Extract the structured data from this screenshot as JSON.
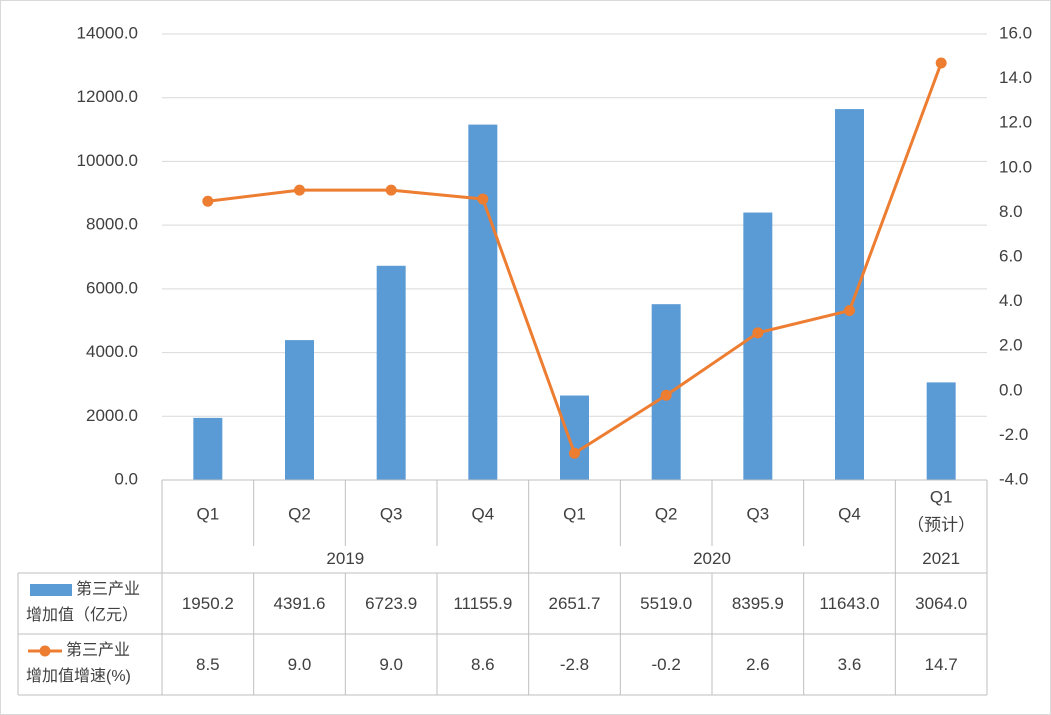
{
  "chart_data": {
    "type": "bar+line",
    "title": "",
    "groups": [
      {
        "label": "2019",
        "quarters": [
          "Q1",
          "Q2",
          "Q3",
          "Q4"
        ]
      },
      {
        "label": "2020",
        "quarters": [
          "Q1",
          "Q2",
          "Q3",
          "Q4"
        ]
      },
      {
        "label": "2021",
        "quarters": [
          "Q1\n（预计）"
        ]
      }
    ],
    "categories": [
      "Q1",
      "Q2",
      "Q3",
      "Q4",
      "Q1",
      "Q2",
      "Q3",
      "Q4",
      "Q1（预计）"
    ],
    "category_lines": [
      [
        "Q1"
      ],
      [
        "Q2"
      ],
      [
        "Q3"
      ],
      [
        "Q4"
      ],
      [
        "Q1"
      ],
      [
        "Q2"
      ],
      [
        "Q3"
      ],
      [
        "Q4"
      ],
      [
        "Q1",
        "（预计）"
      ]
    ],
    "series": [
      {
        "name": "第三产业增加值（亿元）",
        "name_lines": [
          "第三产业",
          "增加值（亿元）"
        ],
        "type": "bar",
        "axis": "left",
        "color": "#5B9BD5",
        "values": [
          1950.2,
          4391.6,
          6723.9,
          11155.9,
          2651.7,
          5519.0,
          8395.9,
          11643.0,
          3064.0
        ],
        "labels": [
          "1950.2",
          "4391.6",
          "6723.9",
          "11155.9",
          "2651.7",
          "5519.0",
          "8395.9",
          "11643.0",
          "3064.0"
        ]
      },
      {
        "name": "第三产业增加值增速（%）",
        "name_lines": [
          "第三产业",
          "增加值增速(%)"
        ],
        "type": "line",
        "axis": "right",
        "color": "#ED7D31",
        "values": [
          8.5,
          9.0,
          9.0,
          8.6,
          -2.8,
          -0.2,
          2.6,
          3.6,
          14.7
        ],
        "labels": [
          "8.5",
          "9.0",
          "9.0",
          "8.6",
          "-2.8",
          "-0.2",
          "2.6",
          "3.6",
          "14.7"
        ]
      }
    ],
    "y_left": {
      "min": 0,
      "max": 14000,
      "step": 2000,
      "tick_labels": [
        "0.0",
        "2000.0",
        "4000.0",
        "6000.0",
        "8000.0",
        "10000.0",
        "12000.0",
        "14000.0"
      ]
    },
    "y_right": {
      "min": -4,
      "max": 16,
      "step": 2,
      "tick_labels": [
        "-4.0",
        "-2.0",
        "0.0",
        "2.0",
        "4.0",
        "6.0",
        "8.0",
        "10.0",
        "12.0",
        "14.0",
        "16.0"
      ]
    },
    "gridlines": true,
    "data_table": true
  }
}
